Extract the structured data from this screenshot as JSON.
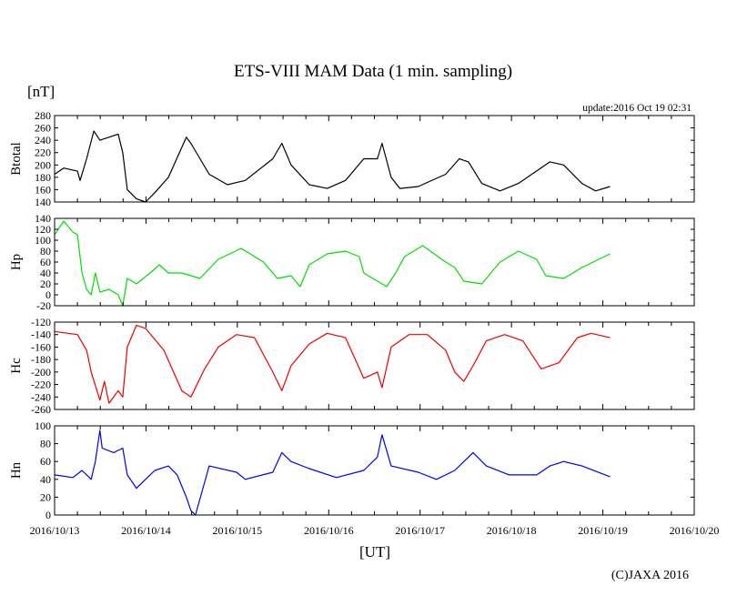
{
  "chart_data": {
    "type": "line",
    "title": "ETS-VIII MAM Data (1 min. sampling)",
    "unit_label": "[nT]",
    "update_label": "update:2016 Oct 19 02:31",
    "xlabel": "[UT]",
    "copyright": "(C)JAXA 2016",
    "x_unit": "hours since 2016/10/13 00:00 UT",
    "xlim": [
      0,
      168
    ],
    "x_tick_labels": [
      "2016/10/13",
      "2016/10/14",
      "2016/10/15",
      "2016/10/16",
      "2016/10/17",
      "2016/10/18",
      "2016/10/19",
      "2016/10/20"
    ],
    "panels": [
      {
        "name": "Btotal",
        "color": "#000000",
        "ylim": [
          140,
          280
        ],
        "yticks": [
          "140",
          "160",
          "180",
          "200",
          "220",
          "240",
          "260",
          "280"
        ],
        "points": [
          [
            0,
            185
          ],
          [
            2.4,
            195
          ],
          [
            6,
            190
          ],
          [
            6.7,
            175
          ],
          [
            8.4,
            210
          ],
          [
            10.3,
            255
          ],
          [
            11.9,
            240
          ],
          [
            14.3,
            245
          ],
          [
            16.7,
            250
          ],
          [
            17.9,
            220
          ],
          [
            19.1,
            160
          ],
          [
            21.5,
            145
          ],
          [
            23.9,
            140
          ],
          [
            26.3,
            155
          ],
          [
            29.9,
            180
          ],
          [
            34.6,
            245
          ],
          [
            35.8,
            235
          ],
          [
            40.6,
            185
          ],
          [
            45.4,
            168
          ],
          [
            50.1,
            175
          ],
          [
            57.3,
            210
          ],
          [
            59.7,
            235
          ],
          [
            62.1,
            200
          ],
          [
            66.9,
            168
          ],
          [
            71.6,
            162
          ],
          [
            76.4,
            175
          ],
          [
            81.2,
            210
          ],
          [
            84.8,
            210
          ],
          [
            86,
            235
          ],
          [
            88.4,
            180
          ],
          [
            90.7,
            162
          ],
          [
            95.5,
            165
          ],
          [
            102.7,
            185
          ],
          [
            106.3,
            210
          ],
          [
            108.7,
            205
          ],
          [
            112.2,
            170
          ],
          [
            117,
            158
          ],
          [
            121.8,
            170
          ],
          [
            130.1,
            205
          ],
          [
            133.7,
            200
          ],
          [
            138.5,
            170
          ],
          [
            142.1,
            158
          ],
          [
            145.9,
            165
          ]
        ]
      },
      {
        "name": "Hp",
        "color": "#00e000",
        "ylim": [
          -20,
          140
        ],
        "yticks": [
          "-20",
          "0",
          "20",
          "40",
          "60",
          "80",
          "100",
          "120",
          "140"
        ],
        "points": [
          [
            0,
            110
          ],
          [
            2.4,
            135
          ],
          [
            4.8,
            115
          ],
          [
            6,
            110
          ],
          [
            7.2,
            40
          ],
          [
            8.4,
            10
          ],
          [
            9.6,
            0
          ],
          [
            10.7,
            40
          ],
          [
            11.9,
            5
          ],
          [
            14.3,
            10
          ],
          [
            16.7,
            0
          ],
          [
            17.9,
            -20
          ],
          [
            19.1,
            30
          ],
          [
            21.5,
            20
          ],
          [
            25.1,
            40
          ],
          [
            27.5,
            55
          ],
          [
            29.9,
            40
          ],
          [
            33.4,
            40
          ],
          [
            38.2,
            30
          ],
          [
            43,
            65
          ],
          [
            49,
            85
          ],
          [
            54.9,
            60
          ],
          [
            58.5,
            30
          ],
          [
            62.1,
            35
          ],
          [
            64.5,
            15
          ],
          [
            66.9,
            55
          ],
          [
            71.6,
            75
          ],
          [
            76.4,
            80
          ],
          [
            80,
            70
          ],
          [
            81.2,
            40
          ],
          [
            84.8,
            25
          ],
          [
            87.2,
            15
          ],
          [
            89.6,
            40
          ],
          [
            91.9,
            70
          ],
          [
            96.7,
            90
          ],
          [
            102.7,
            60
          ],
          [
            105.1,
            50
          ],
          [
            107.5,
            25
          ],
          [
            112.2,
            20
          ],
          [
            117,
            60
          ],
          [
            121.8,
            80
          ],
          [
            126.6,
            65
          ],
          [
            129,
            35
          ],
          [
            133.7,
            30
          ],
          [
            138.5,
            50
          ],
          [
            145.9,
            75
          ]
        ]
      },
      {
        "name": "Hc",
        "color": "#ee0000",
        "ylim": [
          -260,
          -120
        ],
        "yticks": [
          "-260",
          "-240",
          "-220",
          "-200",
          "-180",
          "-160",
          "-140",
          "-120"
        ],
        "points": [
          [
            0,
            -135
          ],
          [
            6,
            -140
          ],
          [
            8.4,
            -165
          ],
          [
            9.6,
            -200
          ],
          [
            11.9,
            -245
          ],
          [
            13.1,
            -215
          ],
          [
            14.3,
            -250
          ],
          [
            16.7,
            -230
          ],
          [
            17.9,
            -240
          ],
          [
            19.1,
            -160
          ],
          [
            21.5,
            -125
          ],
          [
            23.9,
            -130
          ],
          [
            28.7,
            -165
          ],
          [
            33.4,
            -230
          ],
          [
            35.8,
            -240
          ],
          [
            39.4,
            -195
          ],
          [
            43,
            -160
          ],
          [
            47.8,
            -140
          ],
          [
            52.5,
            -145
          ],
          [
            57.3,
            -200
          ],
          [
            59.7,
            -230
          ],
          [
            62.1,
            -190
          ],
          [
            66.9,
            -155
          ],
          [
            71.6,
            -138
          ],
          [
            76.4,
            -145
          ],
          [
            81.2,
            -210
          ],
          [
            84.8,
            -200
          ],
          [
            86,
            -225
          ],
          [
            88.4,
            -160
          ],
          [
            93.1,
            -140
          ],
          [
            97.9,
            -140
          ],
          [
            102.7,
            -165
          ],
          [
            105.1,
            -200
          ],
          [
            107.5,
            -215
          ],
          [
            109.9,
            -190
          ],
          [
            113.4,
            -150
          ],
          [
            118.2,
            -140
          ],
          [
            123,
            -150
          ],
          [
            127.8,
            -195
          ],
          [
            132.5,
            -185
          ],
          [
            137.3,
            -145
          ],
          [
            140.9,
            -138
          ],
          [
            145.9,
            -145
          ]
        ]
      },
      {
        "name": "Hn",
        "color": "#0000ee",
        "ylim": [
          0,
          100
        ],
        "yticks": [
          "0",
          "20",
          "40",
          "60",
          "80",
          "100"
        ],
        "points": [
          [
            0,
            45
          ],
          [
            4.8,
            42
          ],
          [
            7.2,
            50
          ],
          [
            9.6,
            40
          ],
          [
            10.7,
            60
          ],
          [
            11.9,
            95
          ],
          [
            12.5,
            75
          ],
          [
            15.5,
            70
          ],
          [
            17.9,
            75
          ],
          [
            19.1,
            45
          ],
          [
            21.5,
            30
          ],
          [
            23.9,
            40
          ],
          [
            26.3,
            50
          ],
          [
            29.9,
            55
          ],
          [
            32.2,
            45
          ],
          [
            34.6,
            20
          ],
          [
            35.8,
            5
          ],
          [
            37,
            0
          ],
          [
            40.6,
            55
          ],
          [
            47.8,
            48
          ],
          [
            50.1,
            40
          ],
          [
            57.3,
            48
          ],
          [
            59.7,
            70
          ],
          [
            62.1,
            60
          ],
          [
            66.9,
            52
          ],
          [
            74,
            42
          ],
          [
            81.2,
            50
          ],
          [
            84.8,
            65
          ],
          [
            86,
            90
          ],
          [
            88.4,
            55
          ],
          [
            95.5,
            48
          ],
          [
            100.3,
            40
          ],
          [
            105.1,
            50
          ],
          [
            109.9,
            70
          ],
          [
            113.4,
            55
          ],
          [
            119.4,
            45
          ],
          [
            126.6,
            45
          ],
          [
            130.1,
            55
          ],
          [
            133.7,
            60
          ],
          [
            138.5,
            55
          ],
          [
            145.9,
            43
          ]
        ]
      }
    ]
  }
}
